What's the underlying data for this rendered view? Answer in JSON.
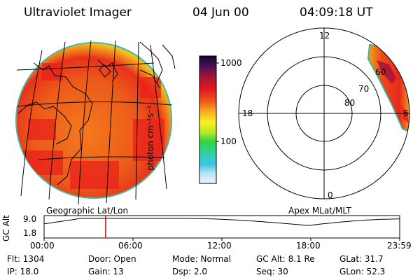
{
  "header": {
    "title": "Ultraviolet Imager",
    "date": "04 Jun 00",
    "time": "04:09:18 UT"
  },
  "colorbar": {
    "unit_label": "photon cm⁻²s⁻¹",
    "tick_labels": [
      "1000",
      "100"
    ]
  },
  "geo_panel": {
    "caption": "Geographic Lat/Lon"
  },
  "polar_panel": {
    "caption": "Apex MLat/MLT",
    "mlt_labels": [
      "12",
      "18",
      "6",
      "0"
    ],
    "mlat_labels": [
      "80",
      "70",
      "60"
    ]
  },
  "altitude_plot": {
    "axis_label": "GC Alt",
    "y_ticks": [
      "9.0",
      "1.8"
    ],
    "x_ticks": [
      "00:00",
      "06:00",
      "12:00",
      "18:00",
      "23:59"
    ],
    "marker_time_hours": 4.155,
    "line_color": "#000000",
    "marker_color": "#cc0000"
  },
  "info": {
    "flt": "Flt: 1304",
    "door": "Door: Open",
    "mode": "Mode: Normal",
    "gc_alt": "GC Alt: 8.1 Re",
    "glat": "GLat:  31.7",
    "ip": "IP: 18.0",
    "gain": "Gain: 13",
    "dsp": "Dsp:     2.0",
    "seq": "Seq: 30",
    "glon": "GLon:  52.3"
  }
}
